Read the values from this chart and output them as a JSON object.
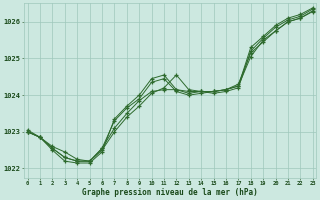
{
  "title": "Graphe pression niveau de la mer (hPa)",
  "hours": [
    0,
    1,
    2,
    3,
    4,
    5,
    6,
    7,
    8,
    9,
    10,
    11,
    12,
    13,
    14,
    15,
    16,
    17,
    18,
    19,
    20,
    21,
    22,
    23
  ],
  "series": [
    [
      1023.0,
      1022.85,
      1022.55,
      1022.3,
      1022.2,
      1022.2,
      1022.55,
      1023.1,
      1023.5,
      1023.85,
      1024.1,
      1024.15,
      1024.15,
      1024.05,
      1024.1,
      1024.1,
      1024.15,
      1024.3,
      1025.15,
      1025.45,
      1025.75,
      1026.0,
      1026.1,
      1026.3
    ],
    [
      1023.05,
      1022.85,
      1022.55,
      1022.3,
      1022.2,
      1022.2,
      1022.55,
      1023.3,
      1023.65,
      1023.9,
      1024.35,
      1024.45,
      1024.1,
      1024.0,
      1024.05,
      1024.1,
      1024.15,
      1024.25,
      1025.05,
      1025.5,
      1025.75,
      1026.0,
      1026.1,
      1026.28
    ],
    [
      1023.0,
      1022.85,
      1022.5,
      1022.2,
      1022.15,
      1022.15,
      1022.45,
      1023.35,
      1023.7,
      1024.0,
      1024.45,
      1024.55,
      1024.15,
      1024.1,
      1024.1,
      1024.1,
      1024.15,
      1024.25,
      1025.3,
      1025.6,
      1025.9,
      1026.1,
      1026.2,
      1026.38
    ],
    [
      1023.0,
      1022.85,
      1022.6,
      1022.45,
      1022.25,
      1022.2,
      1022.5,
      1023.0,
      1023.4,
      1023.7,
      1024.05,
      1024.2,
      1024.55,
      1024.15,
      1024.1,
      1024.05,
      1024.1,
      1024.2,
      1025.2,
      1025.55,
      1025.85,
      1026.05,
      1026.15,
      1026.35
    ]
  ],
  "line_color": "#2d6a2d",
  "bg_color": "#cce8e0",
  "grid_color": "#9fc8bc",
  "text_color": "#1a4a1a",
  "ylim": [
    1021.75,
    1026.5
  ],
  "yticks": [
    1022,
    1023,
    1024,
    1025,
    1026
  ],
  "ytick_top_partial": "1026",
  "xlim": [
    0,
    23
  ],
  "figsize": [
    3.2,
    2.0
  ],
  "dpi": 100
}
